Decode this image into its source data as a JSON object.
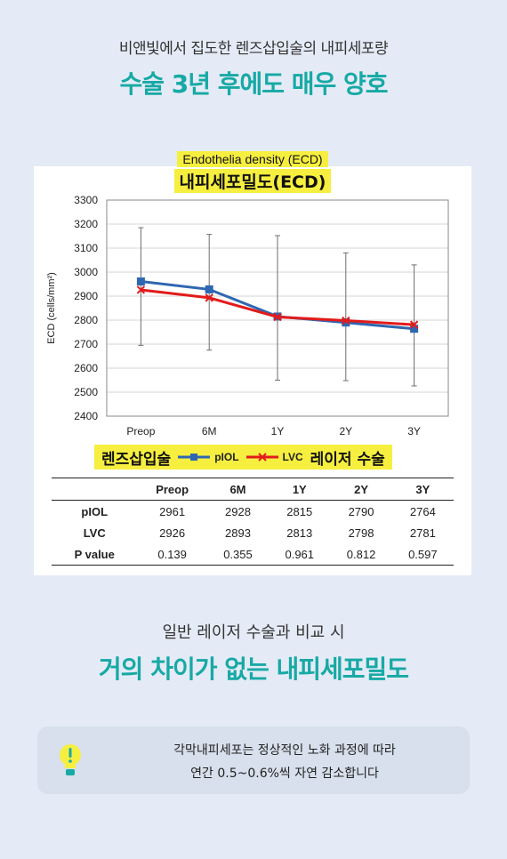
{
  "header": {
    "subtitle": "비앤빛에서 집도한 렌즈삽입술의 내피세포량",
    "headline": "수술 3년 후에도 매우 양호"
  },
  "colors": {
    "accent": "#17a9a5",
    "highlight": "#f6ef3f",
    "piol": "#2e67b1",
    "lvc": "#e21b1b"
  },
  "chart_data": {
    "type": "line",
    "title": "Endothelia density (ECD)",
    "title_ko": "내피세포밀도(ECD)",
    "ylabel": "ECD (cells/mm²)",
    "xlabel": "",
    "categories": [
      "Preop",
      "6M",
      "1Y",
      "2Y",
      "3Y"
    ],
    "yticks": [
      2400,
      2500,
      2600,
      2700,
      2800,
      2900,
      3000,
      3100,
      3200,
      3300
    ],
    "ylim": [
      2400,
      3300
    ],
    "grid": true,
    "series": [
      {
        "name": "pIOL",
        "values": [
          2961,
          2928,
          2815,
          2790,
          2764
        ],
        "color": "#2e67b1",
        "marker": "square"
      },
      {
        "name": "LVC",
        "values": [
          2926,
          2893,
          2813,
          2798,
          2781
        ],
        "color": "#e21b1b",
        "marker": "x"
      }
    ],
    "error_bars": [
      {
        "low": 2695,
        "high": 3185
      },
      {
        "low": 2675,
        "high": 3157
      },
      {
        "low": 2550,
        "high": 3152
      },
      {
        "low": 2548,
        "high": 3080
      },
      {
        "low": 2526,
        "high": 3030
      }
    ],
    "legend": {
      "left_label": "렌즈삽입술",
      "right_label": "레이저 수술",
      "position": "bottom"
    }
  },
  "table": {
    "headers": [
      "",
      "Preop",
      "6M",
      "1Y",
      "2Y",
      "3Y"
    ],
    "rows": [
      [
        "pIOL",
        "2961",
        "2928",
        "2815",
        "2790",
        "2764"
      ],
      [
        "LVC",
        "2926",
        "2893",
        "2813",
        "2798",
        "2781"
      ],
      [
        "P value",
        "0.139",
        "0.355",
        "0.961",
        "0.812",
        "0.597"
      ]
    ]
  },
  "middle": {
    "subtitle": "일반 레이저 수술과 비교 시",
    "headline": "거의 차이가 없는 내피세포밀도"
  },
  "note": {
    "icon": "lightbulb-icon",
    "line1": "각막내피세포는 정상적인 노화 과정에 따라",
    "line2": "연간 0.5~0.6%씩 자연 감소합니다"
  }
}
